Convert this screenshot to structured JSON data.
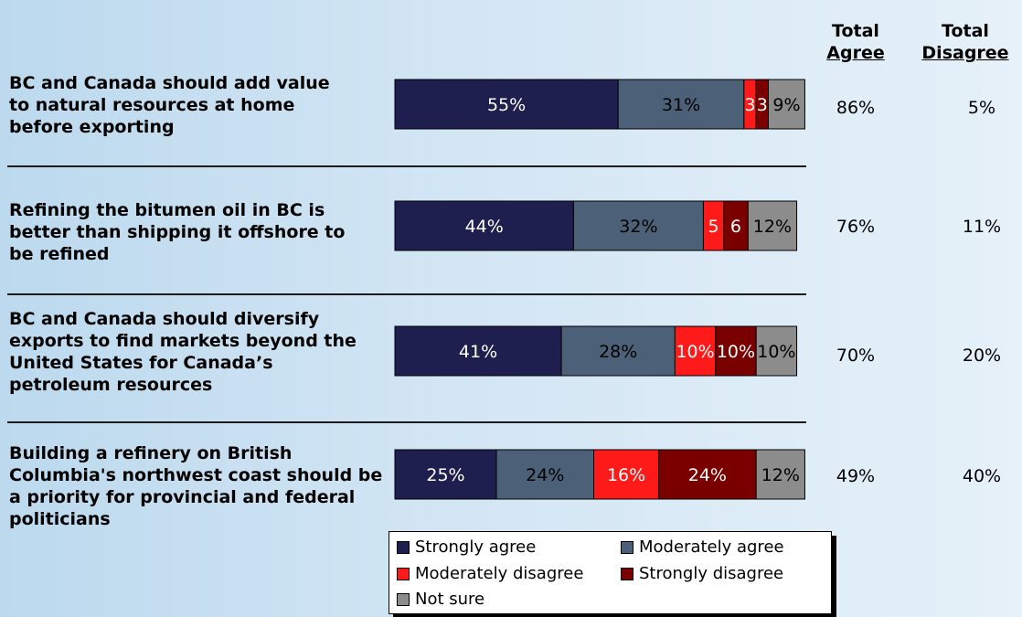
{
  "chart_data": {
    "type": "bar",
    "orientation": "horizontal",
    "stacked": true,
    "categories": [
      "BC and Canada should add value to natural resources at home before exporting",
      "Refining the bitumen oil in BC is better than shipping it offshore to be refined",
      "BC and Canada should diversify exports to find markets beyond the United States for Canada’s petroleum resources",
      "Building a refinery on British Columbia's northwest coast should be a priority for provincial and federal politicians"
    ],
    "series": [
      {
        "name": "Strongly agree",
        "color": "#1f1f4f",
        "values": [
          55,
          44,
          41,
          25
        ],
        "labels": [
          "55%",
          "44%",
          "41%",
          "25%"
        ]
      },
      {
        "name": "Moderately agree",
        "color": "#4c6077",
        "values": [
          31,
          32,
          28,
          24
        ],
        "labels": [
          "31%",
          "32%",
          "28%",
          "24%"
        ]
      },
      {
        "name": "Moderately disagree",
        "color": "#ff1a1a",
        "values": [
          3,
          5,
          10,
          16
        ],
        "labels": [
          "3",
          "5",
          "10%",
          "16%"
        ]
      },
      {
        "name": "Strongly disagree",
        "color": "#7a0000",
        "values": [
          3,
          6,
          10,
          24
        ],
        "labels": [
          "3",
          "6",
          "10%",
          "24%"
        ]
      },
      {
        "name": "Not sure",
        "color": "#8c8c8c",
        "values": [
          9,
          12,
          10,
          12
        ],
        "labels": [
          "9%",
          "12%",
          "10%",
          "12%"
        ]
      }
    ],
    "xlim": [
      0,
      100
    ],
    "grid": false,
    "legend_position": "bottom"
  },
  "headers": {
    "agree_line1": "Total",
    "agree_line2": "Agree",
    "disagree_line1": "Total",
    "disagree_line2": "Disagree"
  },
  "rows": [
    {
      "label": "BC and Canada should add value to natural resources at home before exporting",
      "total_agree": "86%",
      "total_disagree": "5%"
    },
    {
      "label": "Refining the bitumen oil in BC is better than shipping it offshore to be refined",
      "total_agree": "76%",
      "total_disagree": "11%"
    },
    {
      "label": "BC and Canada should diversify exports to find markets beyond the United States for Canada’s petroleum resources",
      "total_agree": "70%",
      "total_disagree": "20%"
    },
    {
      "label": "Building a refinery on British Columbia's northwest coast should be a priority for provincial and federal politicians",
      "total_agree": "49%",
      "total_disagree": "40%"
    }
  ],
  "legend": {
    "items": [
      {
        "label": "Strongly agree",
        "color": "#1f1f4f"
      },
      {
        "label": "Moderately agree",
        "color": "#4c6077"
      },
      {
        "label": "Moderately disagree",
        "color": "#ff1a1a"
      },
      {
        "label": "Strongly disagree",
        "color": "#7a0000"
      },
      {
        "label": "Not sure",
        "color": "#8c8c8c"
      }
    ]
  }
}
